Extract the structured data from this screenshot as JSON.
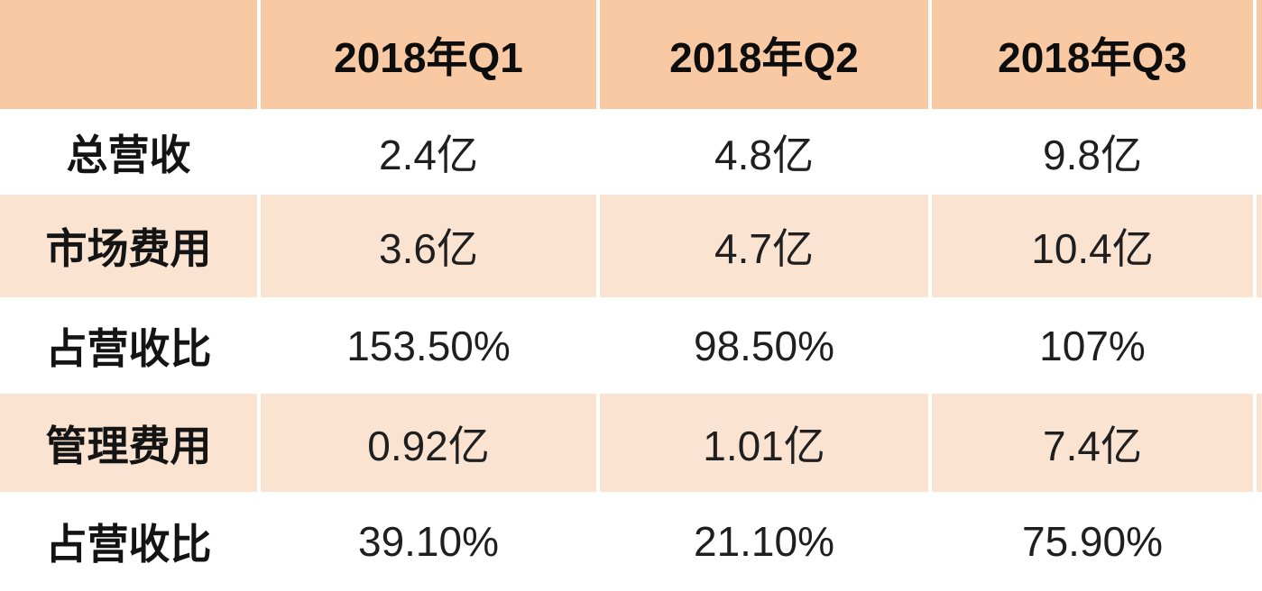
{
  "colors": {
    "header_bg": "#F8C9A3",
    "alt_row_bg": "#FBE3D2",
    "row_bg": "#FFFFFF",
    "text_color": "#1F1F1F"
  },
  "chart_data": {
    "type": "table",
    "title": "",
    "corner_label": "",
    "categories": [
      "2018年Q1",
      "2018年Q2",
      "2018年Q3"
    ],
    "series": [
      {
        "name": "总营收",
        "values": [
          "2.4亿",
          "4.8亿",
          "9.8亿"
        ]
      },
      {
        "name": "市场费用",
        "values": [
          "3.6亿",
          "4.7亿",
          "10.4亿"
        ]
      },
      {
        "name": "占营收比",
        "values": [
          "153.50%",
          "98.50%",
          "107%"
        ]
      },
      {
        "name": "管理费用",
        "values": [
          "0.92亿",
          "1.01亿",
          "7.4亿"
        ]
      },
      {
        "name": "占营收比",
        "values": [
          "39.10%",
          "21.10%",
          "75.90%"
        ]
      }
    ],
    "layout": {
      "header_fill": "#F8C9A3",
      "alternating_row_fill": "#FBE3D2",
      "grid": "white column separators, no visible borders on white rows",
      "right_edge": "partial cropped column sliver visible"
    }
  }
}
